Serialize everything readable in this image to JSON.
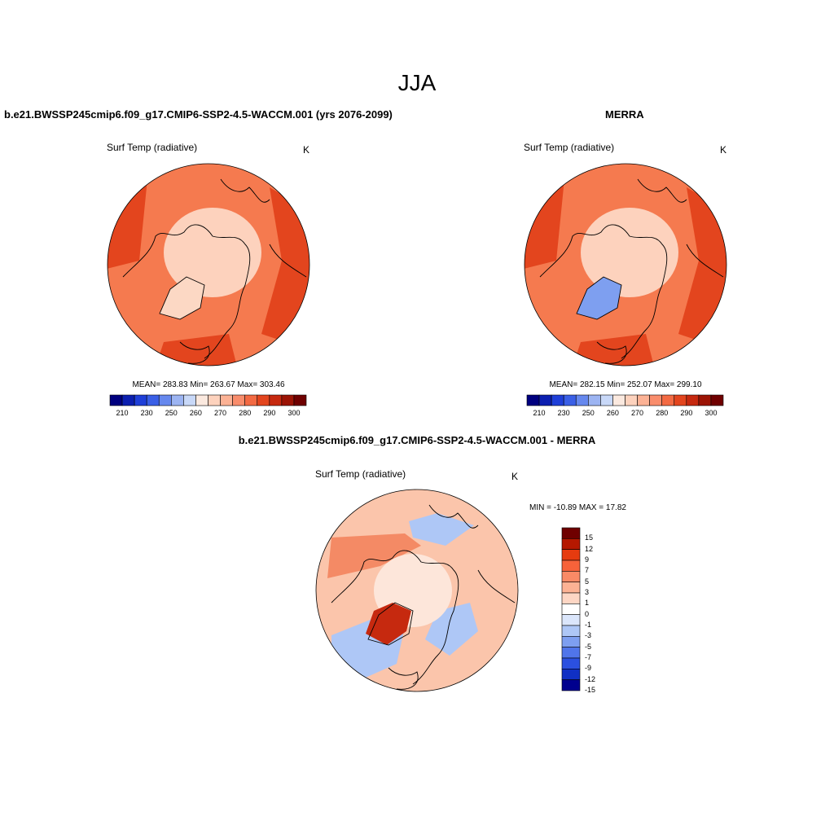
{
  "main_title": "JJA",
  "panels": [
    {
      "title": "b.e21.BWSSP245cmip6.f09_g17.CMIP6-SSP2-4.5-WACCM.001 (yrs 2076-2099)",
      "variable": "Surf Temp (radiative)",
      "units": "K",
      "stats": "MEAN= 283.83  Min= 263.67  Max= 303.46"
    },
    {
      "title": "MERRA",
      "variable": "Surf Temp (radiative)",
      "units": "K",
      "stats": "MEAN= 282.15  Min= 252.07  Max= 299.10"
    },
    {
      "title": "b.e21.BWSSP245cmip6.f09_g17.CMIP6-SSP2-4.5-WACCM.001 - MERRA",
      "variable": "Surf Temp (radiative)",
      "units": "K",
      "stats": "MIN = -10.89 MAX =  17.82"
    }
  ],
  "abs_colorbar": {
    "colors": [
      "#00007f",
      "#0c1fb0",
      "#1f3fd8",
      "#3a5fe6",
      "#6688ee",
      "#9cb4f2",
      "#c8d8f8",
      "#fbe9df",
      "#fdd2bd",
      "#fcb295",
      "#f98d6c",
      "#f36a43",
      "#e3451e",
      "#c6290f",
      "#9c1405",
      "#6f0000"
    ],
    "tick_labels": [
      "210",
      "230",
      "250",
      "260",
      "270",
      "280",
      "290",
      "300"
    ]
  },
  "diff_colorbar": {
    "colors": [
      "#6f0000",
      "#b51800",
      "#e63b0f",
      "#f7623a",
      "#f98a66",
      "#fcb294",
      "#fdd6c4",
      "#ffffff",
      "#dbe6fb",
      "#aec7f6",
      "#7e9ff0",
      "#5075ea",
      "#2b50e0",
      "#1030c4",
      "#00008e"
    ],
    "tick_labels": [
      "15",
      "12",
      "9",
      "7",
      "5",
      "3",
      "1",
      "0",
      "-1",
      "-3",
      "-5",
      "-7",
      "-9",
      "-12",
      "-15"
    ]
  },
  "map_fill": {
    "model_base": "#f57a4f",
    "model_warm": "#e3451e",
    "model_ice": "#fdd2bd",
    "model_greenland": "#fcd8c4",
    "merra_greenland": "#7e9ff0",
    "diff_base": "#fbc5ab",
    "diff_cool": "#aec7f6",
    "diff_hot": "#c6290f"
  }
}
